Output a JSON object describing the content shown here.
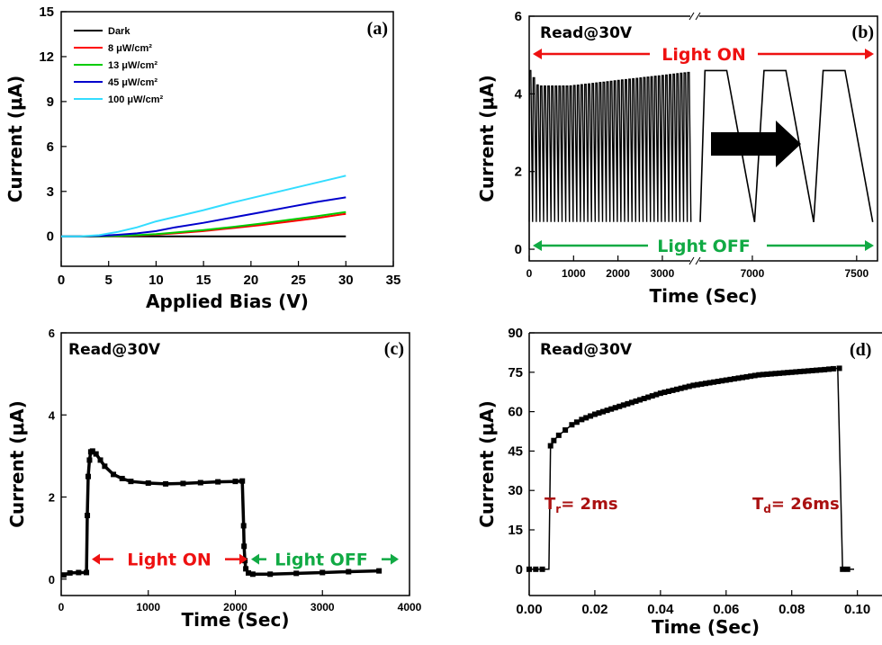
{
  "chart_data": [
    {
      "id": "a",
      "type": "line",
      "panel_label": "(a)",
      "xlabel": "Applied Bias (V)",
      "ylabel": "Current (μA)",
      "xlim": [
        0,
        35
      ],
      "ylim": [
        -2,
        15
      ],
      "xticks": [
        0,
        5,
        10,
        15,
        20,
        25,
        30,
        35
      ],
      "yticks": [
        0,
        3,
        6,
        9,
        12,
        15
      ],
      "legend_position": "top-left",
      "series": [
        {
          "name": "Dark",
          "color": "#000000",
          "x": [
            0,
            30
          ],
          "y": [
            0,
            0
          ]
        },
        {
          "name": "8 μW/cm²",
          "color": "#ff0000",
          "x": [
            0,
            2,
            4,
            6,
            8,
            10,
            12,
            15,
            18,
            21,
            24,
            27,
            30
          ],
          "y": [
            0,
            0,
            0,
            0.02,
            0.06,
            0.12,
            0.2,
            0.35,
            0.55,
            0.75,
            0.98,
            1.22,
            1.5
          ]
        },
        {
          "name": "13 μW/cm²",
          "color": "#00cc00",
          "x": [
            0,
            2,
            4,
            6,
            8,
            10,
            12,
            15,
            18,
            21,
            24,
            27,
            30
          ],
          "y": [
            0,
            0,
            0,
            0.03,
            0.08,
            0.15,
            0.25,
            0.42,
            0.62,
            0.85,
            1.1,
            1.35,
            1.62
          ]
        },
        {
          "name": "45 μW/cm²",
          "color": "#0000cc",
          "x": [
            0,
            2,
            4,
            6,
            8,
            10,
            12,
            15,
            18,
            21,
            24,
            27,
            30
          ],
          "y": [
            0,
            0,
            0.03,
            0.1,
            0.2,
            0.35,
            0.6,
            0.9,
            1.25,
            1.6,
            1.95,
            2.3,
            2.6
          ]
        },
        {
          "name": "100 μW/cm²",
          "color": "#33ddff",
          "x": [
            0,
            2,
            4,
            6,
            8,
            10,
            12,
            15,
            18,
            21,
            24,
            27,
            30
          ],
          "y": [
            0,
            0,
            0.08,
            0.3,
            0.6,
            1.0,
            1.3,
            1.75,
            2.25,
            2.7,
            3.15,
            3.6,
            4.05
          ]
        }
      ],
      "legend": [
        {
          "name": "Dark",
          "color": "#000000"
        },
        {
          "name": "8 μW/cm²",
          "color": "#ff0000"
        },
        {
          "name": "13 μW/cm²",
          "color": "#00cc00"
        },
        {
          "name": "45 μW/cm²",
          "color": "#0000cc"
        },
        {
          "name": "100 μW/cm²",
          "color": "#33ddff"
        }
      ]
    },
    {
      "id": "b",
      "type": "line",
      "panel_label": "(b)",
      "read_label": "Read@30V",
      "light_on_label": "Light ON",
      "light_off_label": "Light OFF",
      "xlabel": "Time (Sec)",
      "ylabel": "Current (μA)",
      "ylim": [
        -0.3,
        6
      ],
      "yticks": [
        0,
        2,
        4,
        6
      ],
      "xticks_left": [
        0,
        1000,
        2000,
        3000
      ],
      "xticks_right": [
        7000,
        7500
      ],
      "axis_break": true,
      "series": [
        {
          "name": "",
          "color": "#000000",
          "segment": "left",
          "x_range": [
            0,
            3650
          ],
          "cycles": 44,
          "on_level": [
            4.6,
            4.2,
            4.55
          ],
          "off_level": 0.7
        },
        {
          "name": "",
          "color": "#000000",
          "segment": "right",
          "x_range": [
            6750,
            7600
          ],
          "cycles": 3,
          "on_level": [
            4.6,
            4.6,
            4.6
          ],
          "off_level": 0.7
        }
      ]
    },
    {
      "id": "c",
      "type": "scatter",
      "panel_label": "(c)",
      "read_label": "Read@30V",
      "light_on_label": "Light ON",
      "light_off_label": "Light OFF",
      "xlabel": "Time (Sec)",
      "ylabel": "Current (μA)",
      "xlim": [
        0,
        4000
      ],
      "ylim": [
        -0.4,
        6
      ],
      "xticks": [
        0,
        1000,
        2000,
        3000,
        4000
      ],
      "yticks": [
        0,
        2,
        4,
        6
      ],
      "series": [
        {
          "name": "",
          "color": "#000000",
          "x": [
            30,
            100,
            200,
            290,
            300,
            310,
            325,
            340,
            360,
            400,
            450,
            500,
            600,
            700,
            800,
            1000,
            1200,
            1400,
            1600,
            1800,
            2000,
            2080,
            2095,
            2100,
            2110,
            2120,
            2150,
            2200,
            2400,
            2700,
            3000,
            3300,
            3650
          ],
          "y": [
            0.1,
            0.15,
            0.16,
            0.16,
            1.55,
            2.5,
            2.9,
            3.1,
            3.12,
            3.05,
            2.9,
            2.75,
            2.55,
            2.45,
            2.38,
            2.34,
            2.32,
            2.33,
            2.35,
            2.37,
            2.38,
            2.39,
            1.3,
            0.8,
            0.45,
            0.25,
            0.15,
            0.12,
            0.12,
            0.14,
            0.16,
            0.18,
            0.2
          ]
        }
      ]
    },
    {
      "id": "d",
      "type": "scatter",
      "panel_label": "(d)",
      "read_label": "Read@30V",
      "rise_label": "T",
      "rise_sub": "r",
      "rise_value": "= 2ms",
      "decay_label": "T",
      "decay_sub": "d",
      "decay_value": "= 26ms",
      "xlabel": "Time (Sec)",
      "ylabel": "Current (μA)",
      "xlim": [
        0.0,
        0.1
      ],
      "ylim": [
        -10,
        90
      ],
      "xticks": [
        "0.00",
        "0.02",
        "0.04",
        "0.06",
        "0.08",
        "0.10"
      ],
      "yticks": [
        0,
        15,
        30,
        45,
        60,
        75,
        90
      ],
      "series": [
        {
          "name": "",
          "color": "#000000",
          "x": [
            0.0,
            0.002,
            0.004,
            0.006,
            0.0065,
            0.0075,
            0.009,
            0.011,
            0.013,
            0.016,
            0.02,
            0.025,
            0.03,
            0.035,
            0.04,
            0.045,
            0.05,
            0.055,
            0.06,
            0.065,
            0.07,
            0.075,
            0.08,
            0.085,
            0.09,
            0.094,
            0.0955,
            0.097,
            0.099
          ],
          "y": [
            0,
            0,
            0,
            0,
            47,
            49,
            51,
            53,
            55,
            57,
            59,
            61,
            63,
            65,
            67,
            68.5,
            70,
            71,
            72,
            73,
            74,
            74.5,
            75,
            75.5,
            76,
            76.5,
            0,
            0,
            0
          ]
        }
      ]
    }
  ]
}
